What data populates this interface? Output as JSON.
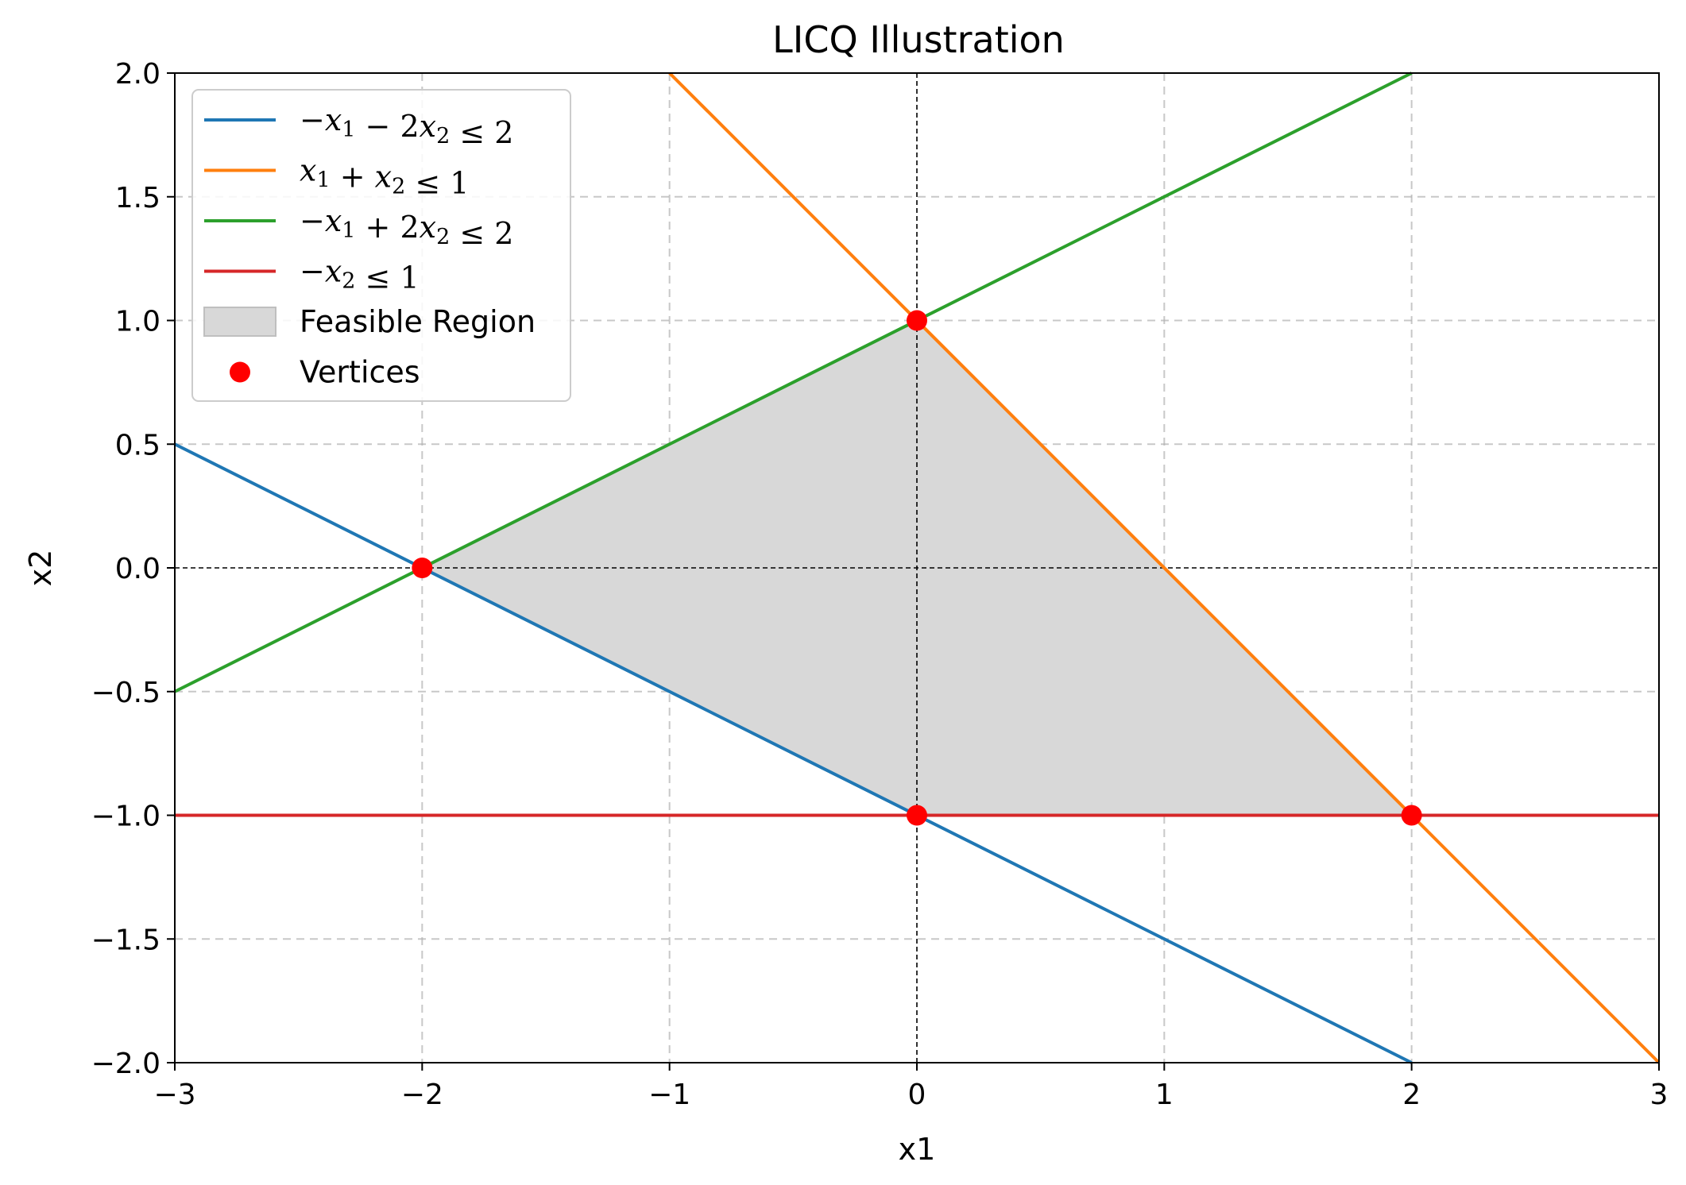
{
  "chart_data": {
    "type": "line",
    "title": "LICQ Illustration",
    "xlabel": "x1",
    "ylabel": "x2",
    "xlim": [
      -3,
      3
    ],
    "ylim": [
      -2,
      2
    ],
    "xticks": [
      -3,
      -2,
      -1,
      0,
      1,
      2,
      3
    ],
    "yticks": [
      -2.0,
      -1.5,
      -1.0,
      -0.5,
      0.0,
      0.5,
      1.0,
      1.5,
      2.0
    ],
    "xtick_labels": [
      "−3",
      "−2",
      "−1",
      "0",
      "1",
      "2",
      "3"
    ],
    "ytick_labels": [
      "−2.0",
      "−1.5",
      "−1.0",
      "−0.5",
      "0.0",
      "0.5",
      "1.0",
      "1.5",
      "2.0"
    ],
    "grid": true,
    "legend_position": "upper-left",
    "series": [
      {
        "name": "−x₁ − 2x₂ ≤ 2",
        "color": "#1f77b4",
        "points": [
          [
            -3,
            0.5
          ],
          [
            2,
            -2
          ]
        ]
      },
      {
        "name": "x₁ + x₂ ≤ 1",
        "color": "#ff7f0e",
        "points": [
          [
            -1,
            2
          ],
          [
            3,
            -2
          ]
        ]
      },
      {
        "name": "−x₁ + 2x₂ ≤ 2",
        "color": "#2ca02c",
        "points": [
          [
            -3,
            -0.5
          ],
          [
            2,
            2
          ]
        ]
      },
      {
        "name": "−x₂ ≤ 1",
        "color": "#d62728",
        "points": [
          [
            -3,
            -1
          ],
          [
            3,
            -1
          ]
        ]
      }
    ],
    "feasible_region": {
      "name": "Feasible Region",
      "color": "#d8d8d8",
      "polygon": [
        [
          -2,
          0
        ],
        [
          0,
          1
        ],
        [
          2,
          -1
        ],
        [
          0,
          -1
        ]
      ]
    },
    "vertices": {
      "name": "Vertices",
      "color": "#ff0000",
      "points": [
        [
          -2,
          0
        ],
        [
          0,
          1
        ],
        [
          0,
          -1
        ],
        [
          2,
          -1
        ]
      ]
    }
  }
}
